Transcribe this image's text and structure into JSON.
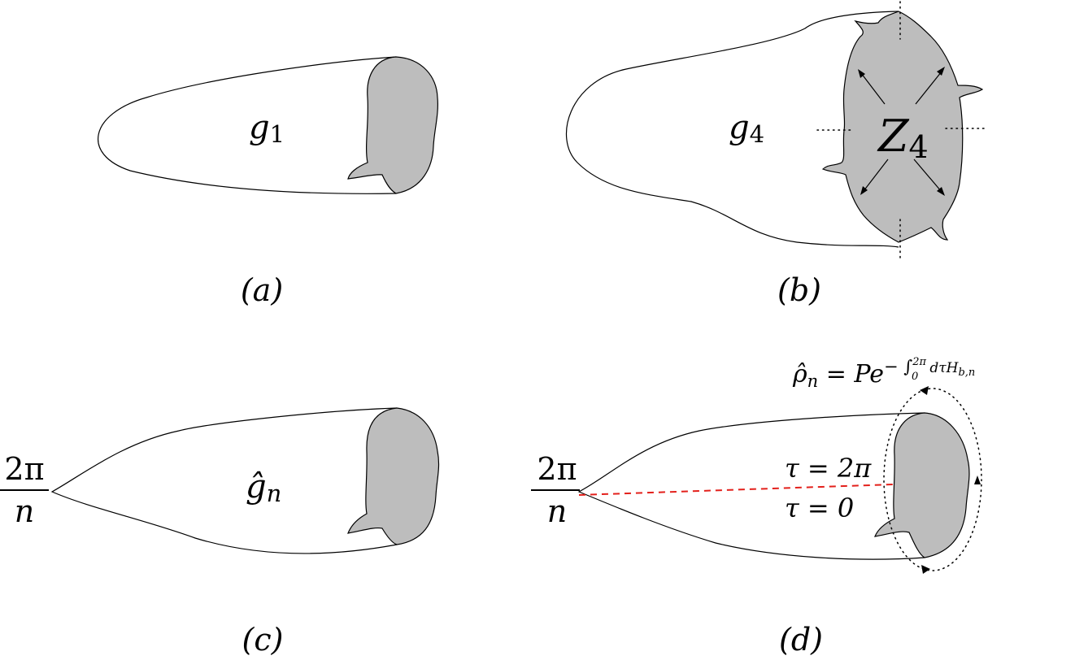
{
  "colors": {
    "region_fill": "#bdbdbd",
    "outline": "#000000",
    "cut_line": "#e3201b"
  },
  "panels": {
    "a": {
      "label": "(a)",
      "region_var": "g",
      "region_sub": "1"
    },
    "b": {
      "label": "(b)",
      "region_var": "g",
      "region_sub": "4",
      "symmetry_var": "Z",
      "symmetry_sub": "4"
    },
    "c": {
      "label": "(c)",
      "region_var": "ĝ",
      "region_sub": "n",
      "angle_num": "2π",
      "angle_den": "n"
    },
    "d": {
      "label": "(d)",
      "angle_num": "2π",
      "angle_den": "n",
      "tau_top": "τ = 2π",
      "tau_bottom": "τ = 0",
      "rho_lhs": "ρ̂",
      "rho_lhs_sub": "n",
      "rho_eq": " = Pe",
      "rho_exp": "− ∫",
      "rho_int_upper": "2π",
      "rho_int_lower": "0",
      "rho_integrand": "dτH",
      "rho_integrand_sub": "b,n"
    }
  }
}
